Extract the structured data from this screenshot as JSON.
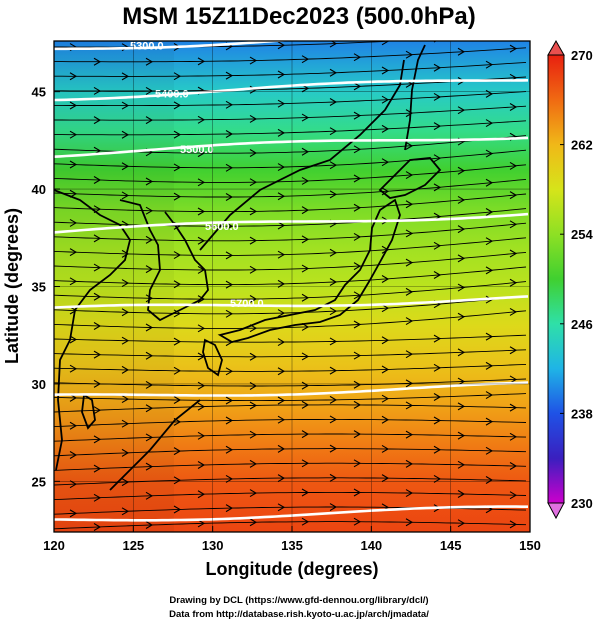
{
  "title": "MSM 15Z11Dec2023 (500.0hPa)",
  "xlabel": "Longitude (degrees)",
  "ylabel": "Latitude  (degrees)",
  "x_ticks": [
    "120",
    "125",
    "130",
    "135",
    "140",
    "145",
    "150"
  ],
  "y_ticks": [
    "25",
    "30",
    "35",
    "40",
    "45"
  ],
  "colorbar": {
    "min": 230,
    "max": 270,
    "tick_labels": [
      "270",
      "262",
      "254",
      "246",
      "238",
      "230"
    ],
    "colors": [
      "#cc00cc",
      "#3a1fbf",
      "#1f52e6",
      "#1fb4e6",
      "#2fe0a8",
      "#40d030",
      "#8ee024",
      "#d6e41a",
      "#f0b818",
      "#f06a12",
      "#e82010"
    ]
  },
  "contours": [
    {
      "label": "5300.0",
      "lat": 47.2
    },
    {
      "label": "5400.0",
      "lat": 44.7
    },
    {
      "label": "5500.0",
      "lat": 41.8
    },
    {
      "label": "5600.0",
      "lat": 37.8
    },
    {
      "label": "5700.0",
      "lat": 33.8
    },
    {
      "label": "",
      "lat": 29.3
    },
    {
      "label": "",
      "lat": 23.0
    }
  ],
  "credits": {
    "line1": "Drawing by DCL (https://www.gfd-dennou.org/library/dcl/)",
    "line2": "Data from http://database.rish.kyoto-u.ac.jp/arch/jmadata/"
  },
  "chart_data": {
    "type": "heatmap",
    "title": "MSM 15Z11Dec2023 (500.0hPa)",
    "xlabel": "Longitude (degrees)",
    "ylabel": "Latitude  (degrees)",
    "xlim": [
      120,
      150
    ],
    "ylim": [
      22.4,
      47.6
    ],
    "color_range": [
      230,
      270
    ],
    "temperature_profile": {
      "lat": [
        22.4,
        25,
        27,
        29,
        31,
        33,
        35,
        37,
        39,
        41,
        43,
        45,
        47.6
      ],
      "value": [
        268,
        267,
        265,
        263,
        261,
        259,
        256.5,
        255,
        253,
        250,
        247,
        244,
        240
      ]
    },
    "contour_levels": [
      5300.0,
      5400.0,
      5500.0,
      5600.0,
      5700.0
    ],
    "legend": "colorbar-right"
  }
}
